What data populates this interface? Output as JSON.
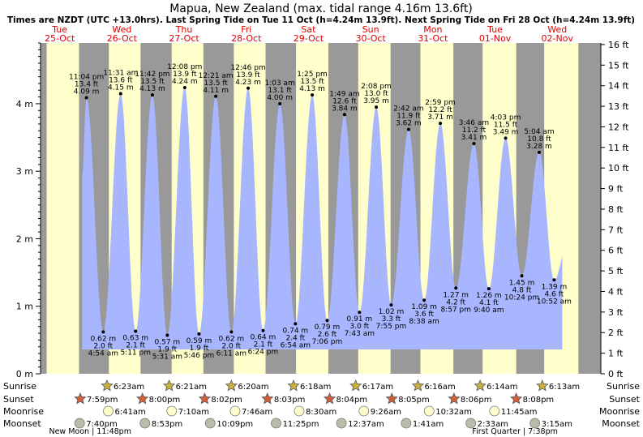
{
  "title": "Mapua, New Zealand (max. tidal range 4.16m 13.6ft)",
  "subtitle": "Times are NZDT (UTC +13.0hrs). Last Spring Tide on Tue 11 Oct (h=4.24m 13.9ft). Next Spring Tide on Fri 28 Oct (h=4.24m 13.9ft)",
  "colors": {
    "water": "#a7b6ff",
    "day": "#ffffcc",
    "night": "#999999",
    "date_text": "#e00000",
    "background": "#ffffff"
  },
  "chart_data": {
    "type": "area",
    "days": [
      {
        "weekday": "Tue",
        "date": "25-Oct"
      },
      {
        "weekday": "Wed",
        "date": "26-Oct"
      },
      {
        "weekday": "Thu",
        "date": "27-Oct"
      },
      {
        "weekday": "Fri",
        "date": "28-Oct"
      },
      {
        "weekday": "Sat",
        "date": "29-Oct"
      },
      {
        "weekday": "Sun",
        "date": "30-Oct"
      },
      {
        "weekday": "Mon",
        "date": "31-Oct"
      },
      {
        "weekday": "Tue",
        "date": "01-Nov"
      },
      {
        "weekday": "Wed",
        "date": "02-Nov"
      }
    ],
    "tides": [
      {
        "type": "high",
        "t": "11:04 pm",
        "m": "4.09 m",
        "ft": "13.4 ft",
        "value": 4.09,
        "pos": 0.93
      },
      {
        "type": "low",
        "t": "4:54 am",
        "m": "0.62 m",
        "ft": "2.0 ft",
        "value": 0.62,
        "pos": 1.2
      },
      {
        "type": "high",
        "t": "11:31 am",
        "m": "4.15 m",
        "ft": "13.6 ft",
        "value": 4.15,
        "pos": 1.48
      },
      {
        "type": "low",
        "t": "5:11 pm",
        "m": "0.63 m",
        "ft": "2.1 ft",
        "value": 0.63,
        "pos": 1.72
      },
      {
        "type": "high",
        "t": "11:42 pm",
        "m": "4.13 m",
        "ft": "13.5 ft",
        "value": 4.13,
        "pos": 1.99
      },
      {
        "type": "low",
        "t": "5:31 am",
        "m": "0.57 m",
        "ft": "1.9 ft",
        "value": 0.57,
        "pos": 2.23
      },
      {
        "type": "high",
        "t": "12:08 pm",
        "m": "4.24 m",
        "ft": "13.9 ft",
        "value": 4.24,
        "pos": 2.51
      },
      {
        "type": "low",
        "t": "5:46 pm",
        "m": "0.59 m",
        "ft": "1.9 ft",
        "value": 0.59,
        "pos": 2.74
      },
      {
        "type": "high",
        "t": "12:21 am",
        "m": "4.11 m",
        "ft": "13.5 ft",
        "value": 4.11,
        "pos": 3.01
      },
      {
        "type": "low",
        "t": "6:11 am",
        "m": "0.62 m",
        "ft": "2.0 ft",
        "value": 0.62,
        "pos": 3.26
      },
      {
        "type": "high",
        "t": "12:46 pm",
        "m": "4.23 m",
        "ft": "13.9 ft",
        "value": 4.23,
        "pos": 3.53
      },
      {
        "type": "low",
        "t": "6:24 pm",
        "m": "0.64 m",
        "ft": "2.1 ft",
        "value": 0.64,
        "pos": 3.77
      },
      {
        "type": "high",
        "t": "1:03 am",
        "m": "4.00 m",
        "ft": "13.1 ft",
        "value": 4.0,
        "pos": 4.04
      },
      {
        "type": "low",
        "t": "6:54 am",
        "m": "0.74 m",
        "ft": "2.4 ft",
        "value": 0.74,
        "pos": 4.29
      },
      {
        "type": "high",
        "t": "1:25 pm",
        "m": "4.13 m",
        "ft": "13.5 ft",
        "value": 4.13,
        "pos": 4.56
      },
      {
        "type": "low",
        "t": "7:06 pm",
        "m": "0.79 m",
        "ft": "2.6 ft",
        "value": 0.79,
        "pos": 4.8
      },
      {
        "type": "high",
        "t": "1:49 am",
        "m": "3.84 m",
        "ft": "12.6 ft",
        "value": 3.84,
        "pos": 5.08
      },
      {
        "type": "low",
        "t": "7:43 am",
        "m": "0.91 m",
        "ft": "3.0 ft",
        "value": 0.91,
        "pos": 5.32
      },
      {
        "type": "high",
        "t": "2:08 pm",
        "m": "3.95 m",
        "ft": "13.0 ft",
        "value": 3.95,
        "pos": 5.59
      },
      {
        "type": "low",
        "t": "7:55 pm",
        "m": "1.02 m",
        "ft": "3.3 ft",
        "value": 1.02,
        "pos": 5.83
      },
      {
        "type": "high",
        "t": "2:42 am",
        "m": "3.62 m",
        "ft": "11.9 ft",
        "value": 3.62,
        "pos": 6.11
      },
      {
        "type": "low",
        "t": "8:38 am",
        "m": "1.09 m",
        "ft": "3.6 ft",
        "value": 1.09,
        "pos": 6.36
      },
      {
        "type": "high",
        "t": "2:59 pm",
        "m": "3.71 m",
        "ft": "12.2 ft",
        "value": 3.71,
        "pos": 6.62
      },
      {
        "type": "low",
        "t": "8:57 pm",
        "m": "1.27 m",
        "ft": "4.2 ft",
        "value": 1.27,
        "pos": 6.87
      },
      {
        "type": "high",
        "t": "3:46 am",
        "m": "3.41 m",
        "ft": "11.2 ft",
        "value": 3.41,
        "pos": 7.16
      },
      {
        "type": "low",
        "t": "9:40 am",
        "m": "1.26 m",
        "ft": "4.1 ft",
        "value": 1.26,
        "pos": 7.4
      },
      {
        "type": "high",
        "t": "4:03 pm",
        "m": "3.49 m",
        "ft": "11.5 ft",
        "value": 3.49,
        "pos": 7.67
      },
      {
        "type": "low",
        "t": "10:24 pm",
        "m": "1.45 m",
        "ft": "4.8 ft",
        "value": 1.45,
        "pos": 7.93
      },
      {
        "type": "high",
        "t": "5:04 am",
        "m": "3.28 m",
        "ft": "10.8 ft",
        "value": 3.28,
        "pos": 8.21
      },
      {
        "type": "low",
        "t": "10:52 am",
        "m": "1.39 m",
        "ft": "4.6 ft",
        "value": 1.39,
        "pos": 8.45
      }
    ],
    "y_left": {
      "ticks": [
        "0 m",
        "1 m",
        "2 m",
        "3 m",
        "4 m"
      ],
      "values": [
        0,
        1,
        2,
        3,
        4
      ],
      "ylim": [
        0,
        4.9
      ]
    },
    "y_right": {
      "ticks": [
        "0 ft",
        "1 ft",
        "2 ft",
        "3 ft",
        "4 ft",
        "5 ft",
        "6 ft",
        "7 ft",
        "8 ft",
        "9 ft",
        "10 ft",
        "11 ft",
        "12 ft",
        "13 ft",
        "14 ft",
        "15 ft",
        "16 ft"
      ]
    },
    "grid": false,
    "nights": [
      [
        -1,
        0.29
      ],
      [
        0.81,
        1.29
      ],
      [
        1.8,
        2.3
      ],
      [
        2.81,
        3.3
      ],
      [
        3.81,
        4.3
      ],
      [
        4.82,
        5.3
      ],
      [
        5.82,
        6.3
      ],
      [
        6.83,
        7.3
      ],
      [
        7.84,
        8.29
      ],
      [
        8.84,
        9.5
      ]
    ],
    "astro_labels": [
      "Sunrise",
      "Sunset",
      "Moonrise",
      "Moonset"
    ],
    "sunrise": [
      {
        "t": "6:23am",
        "pos": 1.26
      },
      {
        "t": "6:21am",
        "pos": 2.26
      },
      {
        "t": "6:20am",
        "pos": 3.26
      },
      {
        "t": "6:18am",
        "pos": 4.26
      },
      {
        "t": "6:17am",
        "pos": 5.26
      },
      {
        "t": "6:16am",
        "pos": 6.26
      },
      {
        "t": "6:14am",
        "pos": 7.26
      },
      {
        "t": "6:13am",
        "pos": 8.26
      }
    ],
    "sunset": [
      {
        "t": "7:59pm",
        "pos": 0.83
      },
      {
        "t": "8:00pm",
        "pos": 1.83
      },
      {
        "t": "8:02pm",
        "pos": 2.83
      },
      {
        "t": "8:03pm",
        "pos": 3.84
      },
      {
        "t": "8:04pm",
        "pos": 4.84
      },
      {
        "t": "8:05pm",
        "pos": 5.84
      },
      {
        "t": "8:06pm",
        "pos": 6.84
      },
      {
        "t": "8:08pm",
        "pos": 7.84
      }
    ],
    "moonrise": [
      {
        "t": "6:41am",
        "pos": 1.28
      },
      {
        "t": "7:10am",
        "pos": 2.3
      },
      {
        "t": "7:46am",
        "pos": 3.32
      },
      {
        "t": "8:30am",
        "pos": 4.35
      },
      {
        "t": "9:26am",
        "pos": 5.39
      },
      {
        "t": "10:32am",
        "pos": 6.44
      },
      {
        "t": "11:45am",
        "pos": 7.49
      }
    ],
    "moonset": [
      {
        "t": "7:40pm",
        "pos": 0.82
      },
      {
        "t": "8:53pm",
        "pos": 1.87
      },
      {
        "t": "10:09pm",
        "pos": 2.92
      },
      {
        "t": "11:25pm",
        "pos": 3.98
      },
      {
        "t": "12:37am",
        "pos": 5.03
      },
      {
        "t": "1:41am",
        "pos": 6.07
      },
      {
        "t": "2:33am",
        "pos": 7.11
      },
      {
        "t": "3:15am",
        "pos": 8.14
      }
    ],
    "moon_phases": [
      {
        "label": "New Moon | 11:48pm",
        "pos": 0.99
      },
      {
        "label": "First Quarter | 7:38pm",
        "pos": 7.82
      }
    ]
  }
}
